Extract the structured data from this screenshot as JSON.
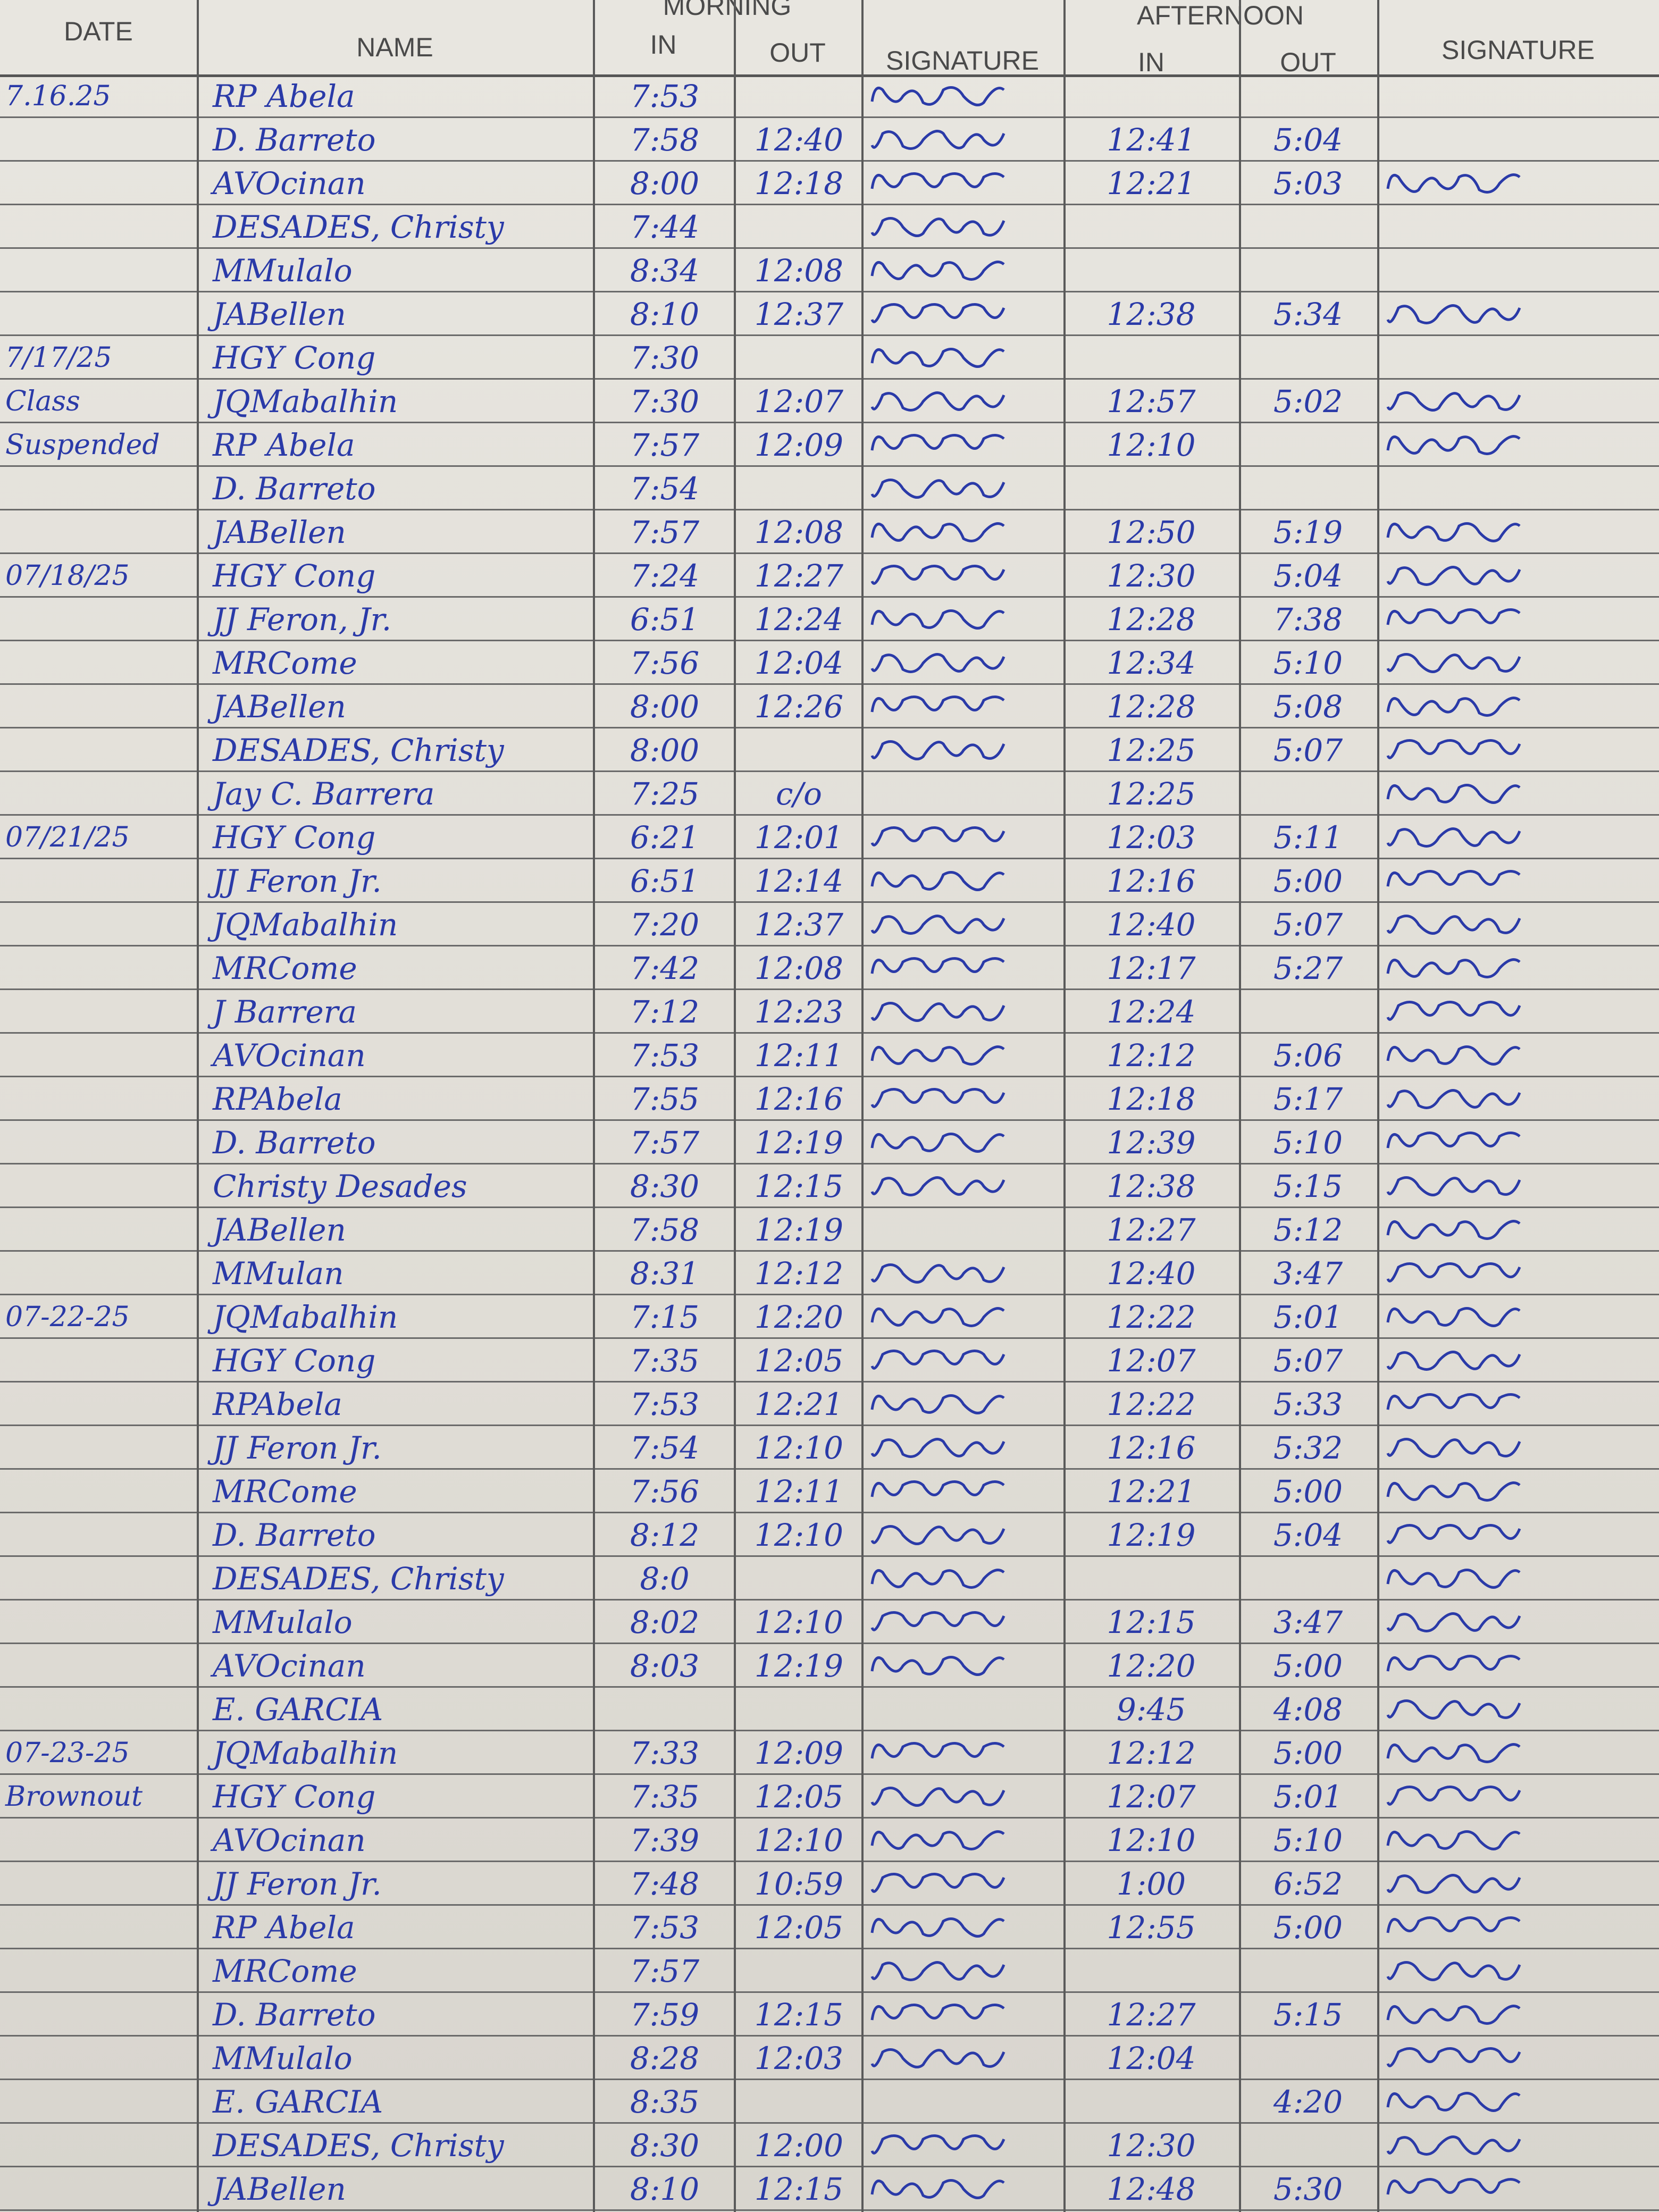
{
  "header": {
    "date": "DATE",
    "name": "NAME",
    "morning": "MORNING",
    "afternoon": "AFTERNOON",
    "in": "IN",
    "out": "OUT",
    "signature": "SIGNATURE"
  },
  "ink_color": "#2a3aa8",
  "rows": [
    {
      "date": "7.16.25",
      "name": "RP Abela",
      "am_in": "7:53",
      "am_out": "",
      "am_sig": true,
      "pm_in": "",
      "pm_out": "",
      "pm_sig": false
    },
    {
      "date": "",
      "name": "D. Barreto",
      "am_in": "7:58",
      "am_out": "12:40",
      "am_sig": true,
      "pm_in": "12:41",
      "pm_out": "5:04",
      "pm_sig": false
    },
    {
      "date": "",
      "name": "AVOcinan",
      "am_in": "8:00",
      "am_out": "12:18",
      "am_sig": true,
      "pm_in": "12:21",
      "pm_out": "5:03",
      "pm_sig": true
    },
    {
      "date": "",
      "name": "DESADES, Christy",
      "am_in": "7:44",
      "am_out": "",
      "am_sig": true,
      "pm_in": "",
      "pm_out": "",
      "pm_sig": false
    },
    {
      "date": "",
      "name": "MMulalo",
      "am_in": "8:34",
      "am_out": "12:08",
      "am_sig": true,
      "pm_in": "",
      "pm_out": "",
      "pm_sig": false
    },
    {
      "date": "",
      "name": "JABellen",
      "am_in": "8:10",
      "am_out": "12:37",
      "am_sig": true,
      "pm_in": "12:38",
      "pm_out": "5:34",
      "pm_sig": true
    },
    {
      "date": "7/17/25",
      "name": "HGY Cong",
      "am_in": "7:30",
      "am_out": "",
      "am_sig": true,
      "pm_in": "",
      "pm_out": "",
      "pm_sig": false
    },
    {
      "date": "Class",
      "name": "JQMabalhin",
      "am_in": "7:30",
      "am_out": "12:07",
      "am_sig": true,
      "pm_in": "12:57",
      "pm_out": "5:02",
      "pm_sig": true
    },
    {
      "date": "Suspended",
      "name": "RP Abela",
      "am_in": "7:57",
      "am_out": "12:09",
      "am_sig": true,
      "pm_in": "12:10",
      "pm_out": "",
      "pm_sig": true
    },
    {
      "date": "",
      "name": "D. Barreto",
      "am_in": "7:54",
      "am_out": "",
      "am_sig": true,
      "pm_in": "",
      "pm_out": "",
      "pm_sig": false
    },
    {
      "date": "",
      "name": "JABellen",
      "am_in": "7:57",
      "am_out": "12:08",
      "am_sig": true,
      "pm_in": "12:50",
      "pm_out": "5:19",
      "pm_sig": true
    },
    {
      "date": "07/18/25",
      "name": "HGY Cong",
      "am_in": "7:24",
      "am_out": "12:27",
      "am_sig": true,
      "pm_in": "12:30",
      "pm_out": "5:04",
      "pm_sig": true
    },
    {
      "date": "",
      "name": "JJ Feron, Jr.",
      "am_in": "6:51",
      "am_out": "12:24",
      "am_sig": true,
      "pm_in": "12:28",
      "pm_out": "7:38",
      "pm_sig": true
    },
    {
      "date": "",
      "name": "MRCome",
      "am_in": "7:56",
      "am_out": "12:04",
      "am_sig": true,
      "pm_in": "12:34",
      "pm_out": "5:10",
      "pm_sig": true
    },
    {
      "date": "",
      "name": "JABellen",
      "am_in": "8:00",
      "am_out": "12:26",
      "am_sig": true,
      "pm_in": "12:28",
      "pm_out": "5:08",
      "pm_sig": true
    },
    {
      "date": "",
      "name": "DESADES, Christy",
      "am_in": "8:00",
      "am_out": "",
      "am_sig": true,
      "pm_in": "12:25",
      "pm_out": "5:07",
      "pm_sig": true
    },
    {
      "date": "",
      "name": "Jay C. Barrera",
      "am_in": "7:25",
      "am_out": "c/o",
      "am_sig": false,
      "pm_in": "12:25",
      "pm_out": "",
      "pm_sig": true
    },
    {
      "date": "07/21/25",
      "name": "HGY Cong",
      "am_in": "6:21",
      "am_out": "12:01",
      "am_sig": true,
      "pm_in": "12:03",
      "pm_out": "5:11",
      "pm_sig": true
    },
    {
      "date": "",
      "name": "JJ Feron Jr.",
      "am_in": "6:51",
      "am_out": "12:14",
      "am_sig": true,
      "pm_in": "12:16",
      "pm_out": "5:00",
      "pm_sig": true
    },
    {
      "date": "",
      "name": "JQMabalhin",
      "am_in": "7:20",
      "am_out": "12:37",
      "am_sig": true,
      "pm_in": "12:40",
      "pm_out": "5:07",
      "pm_sig": true
    },
    {
      "date": "",
      "name": "MRCome",
      "am_in": "7:42",
      "am_out": "12:08",
      "am_sig": true,
      "pm_in": "12:17",
      "pm_out": "5:27",
      "pm_sig": true
    },
    {
      "date": "",
      "name": "J Barrera",
      "am_in": "7:12",
      "am_out": "12:23",
      "am_sig": true,
      "pm_in": "12:24",
      "pm_out": "",
      "pm_sig": true
    },
    {
      "date": "",
      "name": "AVOcinan",
      "am_in": "7:53",
      "am_out": "12:11",
      "am_sig": true,
      "pm_in": "12:12",
      "pm_out": "5:06",
      "pm_sig": true
    },
    {
      "date": "",
      "name": "RPAbela",
      "am_in": "7:55",
      "am_out": "12:16",
      "am_sig": true,
      "pm_in": "12:18",
      "pm_out": "5:17",
      "pm_sig": true
    },
    {
      "date": "",
      "name": "D. Barreto",
      "am_in": "7:57",
      "am_out": "12:19",
      "am_sig": true,
      "pm_in": "12:39",
      "pm_out": "5:10",
      "pm_sig": true
    },
    {
      "date": "",
      "name": "Christy Desades",
      "am_in": "8:30",
      "am_out": "12:15",
      "am_sig": true,
      "pm_in": "12:38",
      "pm_out": "5:15",
      "pm_sig": true
    },
    {
      "date": "",
      "name": "JABellen",
      "am_in": "7:58",
      "am_out": "12:19",
      "am_sig": false,
      "pm_in": "12:27",
      "pm_out": "5:12",
      "pm_sig": true
    },
    {
      "date": "",
      "name": "MMulan",
      "am_in": "8:31",
      "am_out": "12:12",
      "am_sig": true,
      "pm_in": "12:40",
      "pm_out": "3:47",
      "pm_sig": true
    },
    {
      "date": "07-22-25",
      "name": "JQMabalhin",
      "am_in": "7:15",
      "am_out": "12:20",
      "am_sig": true,
      "pm_in": "12:22",
      "pm_out": "5:01",
      "pm_sig": true
    },
    {
      "date": "",
      "name": "HGY Cong",
      "am_in": "7:35",
      "am_out": "12:05",
      "am_sig": true,
      "pm_in": "12:07",
      "pm_out": "5:07",
      "pm_sig": true
    },
    {
      "date": "",
      "name": "RPAbela",
      "am_in": "7:53",
      "am_out": "12:21",
      "am_sig": true,
      "pm_in": "12:22",
      "pm_out": "5:33",
      "pm_sig": true
    },
    {
      "date": "",
      "name": "JJ Feron Jr.",
      "am_in": "7:54",
      "am_out": "12:10",
      "am_sig": true,
      "pm_in": "12:16",
      "pm_out": "5:32",
      "pm_sig": true
    },
    {
      "date": "",
      "name": "MRCome",
      "am_in": "7:56",
      "am_out": "12:11",
      "am_sig": true,
      "pm_in": "12:21",
      "pm_out": "5:00",
      "pm_sig": true
    },
    {
      "date": "",
      "name": "D. Barreto",
      "am_in": "8:12",
      "am_out": "12:10",
      "am_sig": true,
      "pm_in": "12:19",
      "pm_out": "5:04",
      "pm_sig": true
    },
    {
      "date": "",
      "name": "DESADES, Christy",
      "am_in": "8:0",
      "am_out": "",
      "am_sig": true,
      "pm_in": "",
      "pm_out": "",
      "pm_sig": true
    },
    {
      "date": "",
      "name": "MMulalo",
      "am_in": "8:02",
      "am_out": "12:10",
      "am_sig": true,
      "pm_in": "12:15",
      "pm_out": "3:47",
      "pm_sig": true
    },
    {
      "date": "",
      "name": "AVOcinan",
      "am_in": "8:03",
      "am_out": "12:19",
      "am_sig": true,
      "pm_in": "12:20",
      "pm_out": "5:00",
      "pm_sig": true
    },
    {
      "date": "",
      "name": "E. GARCIA",
      "am_in": "",
      "am_out": "",
      "am_sig": false,
      "pm_in": "9:45",
      "pm_out": "4:08",
      "pm_sig": true
    },
    {
      "date": "07-23-25",
      "name": "JQMabalhin",
      "am_in": "7:33",
      "am_out": "12:09",
      "am_sig": true,
      "pm_in": "12:12",
      "pm_out": "5:00",
      "pm_sig": true
    },
    {
      "date": "Brownout",
      "name": "HGY Cong",
      "am_in": "7:35",
      "am_out": "12:05",
      "am_sig": true,
      "pm_in": "12:07",
      "pm_out": "5:01",
      "pm_sig": true
    },
    {
      "date": "",
      "name": "AVOcinan",
      "am_in": "7:39",
      "am_out": "12:10",
      "am_sig": true,
      "pm_in": "12:10",
      "pm_out": "5:10",
      "pm_sig": true
    },
    {
      "date": "",
      "name": "JJ Feron Jr.",
      "am_in": "7:48",
      "am_out": "10:59",
      "am_sig": true,
      "pm_in": "1:00",
      "pm_out": "6:52",
      "pm_sig": true
    },
    {
      "date": "",
      "name": "RP Abela",
      "am_in": "7:53",
      "am_out": "12:05",
      "am_sig": true,
      "pm_in": "12:55",
      "pm_out": "5:00",
      "pm_sig": true
    },
    {
      "date": "",
      "name": "MRCome",
      "am_in": "7:57",
      "am_out": "",
      "am_sig": true,
      "pm_in": "",
      "pm_out": "",
      "pm_sig": true
    },
    {
      "date": "",
      "name": "D. Barreto",
      "am_in": "7:59",
      "am_out": "12:15",
      "am_sig": true,
      "pm_in": "12:27",
      "pm_out": "5:15",
      "pm_sig": true
    },
    {
      "date": "",
      "name": "MMulalo",
      "am_in": "8:28",
      "am_out": "12:03",
      "am_sig": true,
      "pm_in": "12:04",
      "pm_out": "",
      "pm_sig": true
    },
    {
      "date": "",
      "name": "E. GARCIA",
      "am_in": "8:35",
      "am_out": "",
      "am_sig": false,
      "pm_in": "",
      "pm_out": "4:20",
      "pm_sig": true
    },
    {
      "date": "",
      "name": "DESADES, Christy",
      "am_in": "8:30",
      "am_out": "12:00",
      "am_sig": true,
      "pm_in": "12:30",
      "pm_out": "",
      "pm_sig": true
    },
    {
      "date": "",
      "name": "JABellen",
      "am_in": "8:10",
      "am_out": "12:15",
      "am_sig": true,
      "pm_in": "12:48",
      "pm_out": "5:30",
      "pm_sig": true
    }
  ]
}
